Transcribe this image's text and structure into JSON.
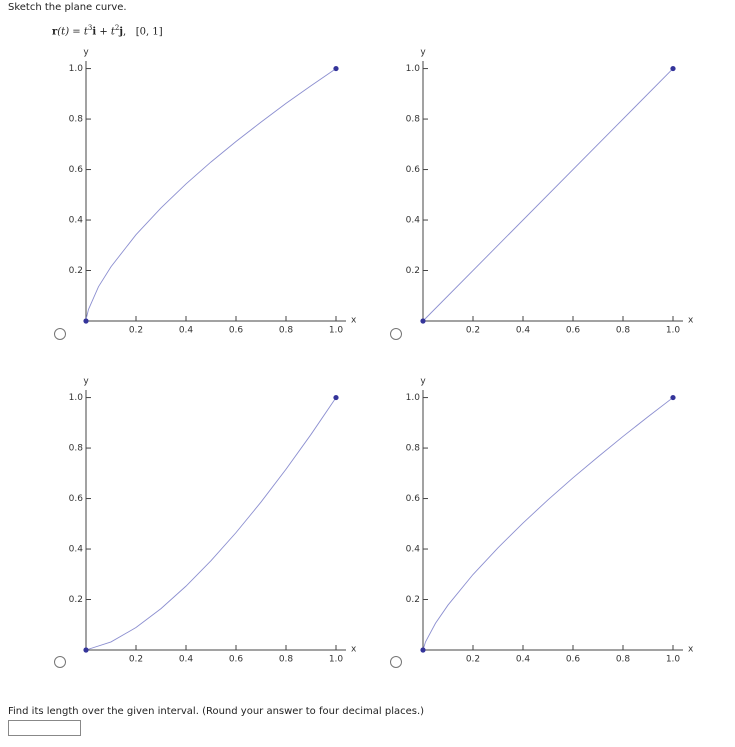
{
  "question": {
    "instruction": "Sketch the plane curve.",
    "formula_parts": [
      "r",
      "(t) = t",
      "3",
      "i",
      " + t",
      "2",
      "j",
      ",",
      "[0, 1]"
    ]
  },
  "chart_data": [
    {
      "type": "line",
      "x_label": "x",
      "y_label": "y",
      "x": [
        0,
        0.001,
        0.01,
        0.05,
        0.1,
        0.2,
        0.3,
        0.4,
        0.5,
        0.6,
        0.7,
        0.8,
        0.9,
        1.0
      ],
      "y": [
        0,
        0.01,
        0.046,
        0.136,
        0.215,
        0.342,
        0.448,
        0.543,
        0.63,
        0.711,
        0.788,
        0.862,
        0.932,
        1.0
      ],
      "xlim": [
        0,
        1.04
      ],
      "ylim": [
        0,
        1.03
      ],
      "xticks": [
        0.2,
        0.4,
        0.6,
        0.8,
        {
          "value": 1,
          "label": "1.0"
        }
      ],
      "yticks": [
        0.2,
        0.4,
        0.6,
        0.8,
        {
          "value": 1,
          "label": "1.0"
        }
      ],
      "color": "#8c8fd0",
      "marker_color": "#34349a"
    },
    {
      "type": "line",
      "x_label": "x",
      "y_label": "y",
      "x": [
        0,
        1.0
      ],
      "y": [
        0,
        1.0
      ],
      "xlim": [
        0,
        1.04
      ],
      "ylim": [
        0,
        1.03
      ],
      "xticks": [
        0.2,
        0.4,
        0.6,
        0.8,
        {
          "value": 1,
          "label": "1.0"
        }
      ],
      "yticks": [
        0.2,
        0.4,
        0.6,
        0.8,
        {
          "value": 1,
          "label": "1.0"
        }
      ],
      "color": "#8c8fd0",
      "marker_color": "#34349a"
    },
    {
      "type": "line",
      "x_label": "x",
      "y_label": "y",
      "x": [
        0,
        0.1,
        0.2,
        0.3,
        0.4,
        0.5,
        0.6,
        0.7,
        0.8,
        0.9,
        1.0
      ],
      "y": [
        0,
        0.032,
        0.089,
        0.164,
        0.253,
        0.354,
        0.465,
        0.586,
        0.716,
        0.854,
        1.0
      ],
      "xlim": [
        0,
        1.04
      ],
      "ylim": [
        0,
        1.03
      ],
      "xticks": [
        0.2,
        0.4,
        0.6,
        0.8,
        {
          "value": 1,
          "label": "1.0"
        }
      ],
      "yticks": [
        0.2,
        0.4,
        0.6,
        0.8,
        {
          "value": 1,
          "label": "1.0"
        }
      ],
      "color": "#8c8fd0",
      "marker_color": "#34349a"
    },
    {
      "type": "line",
      "x_label": "x",
      "y_label": "y",
      "x": [
        0,
        0.01,
        0.05,
        0.1,
        0.2,
        0.3,
        0.4,
        0.5,
        0.6,
        0.7,
        0.8,
        0.9,
        1.0
      ],
      "y": [
        0,
        0.032,
        0.106,
        0.178,
        0.299,
        0.405,
        0.503,
        0.595,
        0.682,
        0.765,
        0.846,
        0.924,
        1.0
      ],
      "xlim": [
        0,
        1.04
      ],
      "ylim": [
        0,
        1.03
      ],
      "xticks": [
        0.2,
        0.4,
        0.6,
        0.8,
        {
          "value": 1,
          "label": "1.0"
        }
      ],
      "yticks": [
        0.2,
        0.4,
        0.6,
        0.8,
        {
          "value": 1,
          "label": "1.0"
        }
      ],
      "color": "#8c8fd0",
      "marker_color": "#34349a"
    }
  ],
  "prompt": {
    "text": "Find its length over the given interval. (Round your answer to four decimal places.)"
  }
}
